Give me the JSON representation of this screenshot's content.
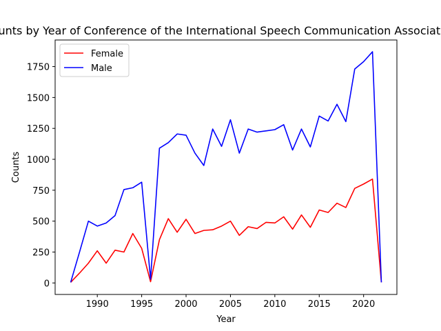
{
  "chart_data": {
    "type": "line",
    "title": "Counts by Year of Conference of the International Speech Communication Association",
    "xlabel": "Year",
    "ylabel": "Counts",
    "xlim": [
      1985.25,
      2023.75
    ],
    "ylim": [
      -93,
      1965
    ],
    "xticks": [
      1990,
      1995,
      2000,
      2005,
      2010,
      2015,
      2020
    ],
    "yticks": [
      0,
      250,
      500,
      750,
      1000,
      1250,
      1500,
      1750
    ],
    "grid": false,
    "legend_position": "top-left",
    "x": [
      1987,
      1988,
      1989,
      1990,
      1991,
      1992,
      1993,
      1994,
      1995,
      1996,
      1997,
      1998,
      1999,
      2000,
      2001,
      2002,
      2003,
      2004,
      2005,
      2006,
      2007,
      2008,
      2009,
      2010,
      2011,
      2012,
      2013,
      2014,
      2015,
      2016,
      2017,
      2018,
      2019,
      2020,
      2021,
      2022
    ],
    "series": [
      {
        "name": "Female",
        "color": "#ff0000",
        "values": [
          5,
          80,
          160,
          260,
          160,
          265,
          250,
          400,
          280,
          10,
          350,
          520,
          410,
          515,
          400,
          425,
          430,
          460,
          500,
          385,
          455,
          440,
          490,
          485,
          535,
          435,
          550,
          450,
          590,
          570,
          645,
          610,
          765,
          800,
          840,
          5
        ]
      },
      {
        "name": "Male",
        "color": "#0000ff",
        "values": [
          5,
          250,
          500,
          460,
          485,
          545,
          755,
          770,
          815,
          30,
          1090,
          1135,
          1205,
          1195,
          1050,
          950,
          1245,
          1105,
          1320,
          1050,
          1245,
          1220,
          1230,
          1240,
          1280,
          1075,
          1245,
          1100,
          1350,
          1310,
          1445,
          1305,
          1730,
          1790,
          1870,
          5
        ]
      }
    ]
  }
}
